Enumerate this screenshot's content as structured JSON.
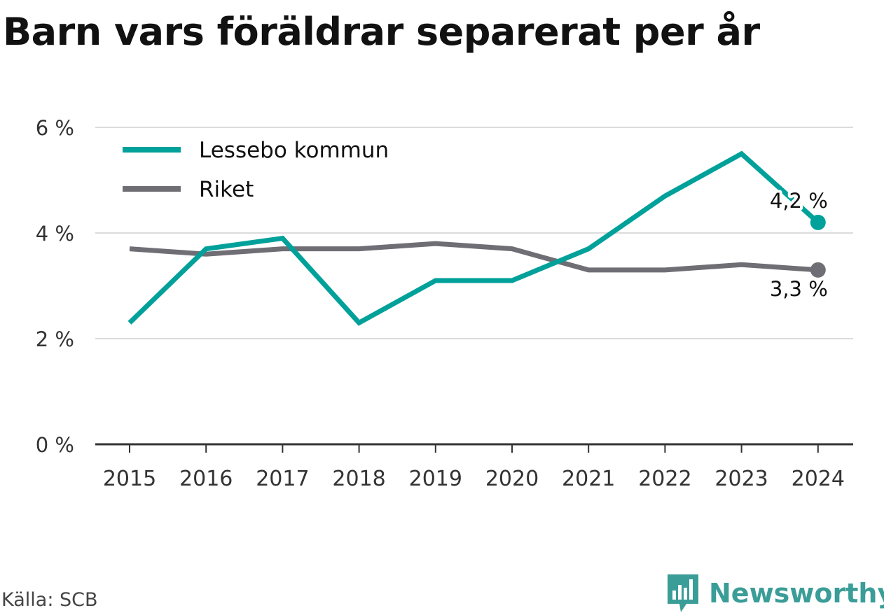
{
  "chart_data": {
    "type": "line",
    "title": "Barn vars föräldrar separerat per år",
    "xlabel": "",
    "ylabel": "",
    "categories": [
      "2015",
      "2016",
      "2017",
      "2018",
      "2019",
      "2020",
      "2021",
      "2022",
      "2023",
      "2024"
    ],
    "ylim": [
      0,
      6
    ],
    "yticks": [
      0,
      2,
      4,
      6
    ],
    "ytick_labels": [
      "0 %",
      "2 %",
      "4 %",
      "6 %"
    ],
    "grid": true,
    "legend_position": "top-left",
    "series": [
      {
        "name": "Lessebo kommun",
        "color": "#00a19a",
        "values": [
          2.3,
          3.7,
          3.9,
          2.3,
          3.1,
          3.1,
          3.7,
          4.7,
          5.5,
          4.2
        ],
        "end_label": "4,2 %"
      },
      {
        "name": "Riket",
        "color": "#6f6e74",
        "values": [
          3.7,
          3.6,
          3.7,
          3.7,
          3.8,
          3.7,
          3.3,
          3.3,
          3.4,
          3.3
        ],
        "end_label": "3,3 %"
      }
    ]
  },
  "source": "Källa: SCB",
  "brand": {
    "name": "Newsworthy",
    "icon": "bar-chart-bubble-icon",
    "color": "#3a9d97"
  }
}
